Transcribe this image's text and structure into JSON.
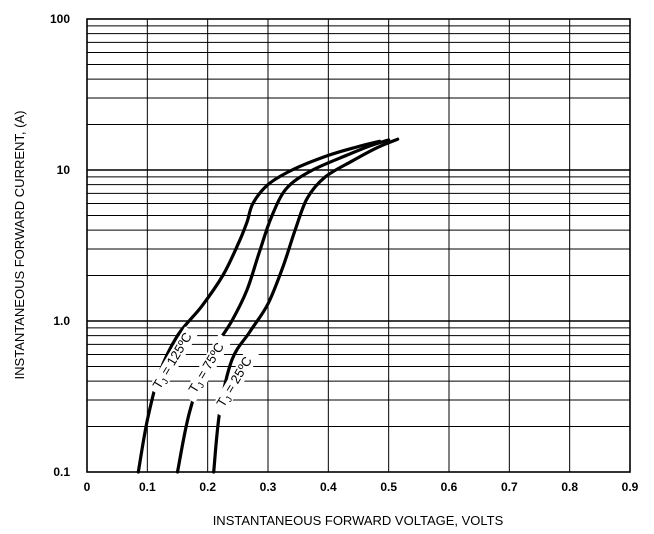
{
  "chart_data": {
    "type": "line",
    "xlabel": "INSTANTANEOUS FORWARD VOLTAGE, VOLTS",
    "ylabel": "INSTANTANEOUS  FORWARD CURRENT, (A)",
    "xlim": [
      0,
      0.9
    ],
    "ylim": [
      0.1,
      100
    ],
    "yscale": "log",
    "grid": true,
    "x_ticks": [
      "0",
      "0.1",
      "0.2",
      "0.3",
      "0.4",
      "0.5",
      "0.6",
      "0.7",
      "0.8",
      "0.9"
    ],
    "y_ticks": [
      "0.1",
      "1.0",
      "10",
      "100"
    ],
    "series": [
      {
        "name": "TJ = 125ºC",
        "label_prefix": "T",
        "label_sub": "J",
        "label_rest": " = 125ºC",
        "x": [
          0.085,
          0.1,
          0.12,
          0.15,
          0.19,
          0.225,
          0.25,
          0.265,
          0.275,
          0.3,
          0.34,
          0.4,
          0.45,
          0.485
        ],
        "y": [
          0.1,
          0.22,
          0.45,
          0.8,
          1.25,
          2.0,
          3.2,
          4.5,
          6.0,
          8.0,
          10.0,
          12.5,
          14.3,
          15.5
        ]
      },
      {
        "name": "TJ = 75ºC",
        "label_prefix": "T",
        "label_sub": "J",
        "label_rest": " = 75ºC",
        "x": [
          0.15,
          0.17,
          0.2,
          0.24,
          0.265,
          0.285,
          0.305,
          0.33,
          0.37,
          0.43,
          0.47,
          0.5
        ],
        "y": [
          0.1,
          0.25,
          0.55,
          1.0,
          1.6,
          2.8,
          4.8,
          7.5,
          9.8,
          12.5,
          14.5,
          15.8
        ]
      },
      {
        "name": "TJ = 25ºC",
        "label_prefix": "T",
        "label_sub": "J",
        "label_rest": " = 25ºC",
        "x": [
          0.21,
          0.22,
          0.24,
          0.27,
          0.3,
          0.325,
          0.345,
          0.365,
          0.395,
          0.44,
          0.48,
          0.515
        ],
        "y": [
          0.1,
          0.25,
          0.55,
          0.85,
          1.3,
          2.3,
          4.0,
          6.5,
          9.0,
          11.5,
          14.0,
          16.0
        ]
      }
    ]
  }
}
